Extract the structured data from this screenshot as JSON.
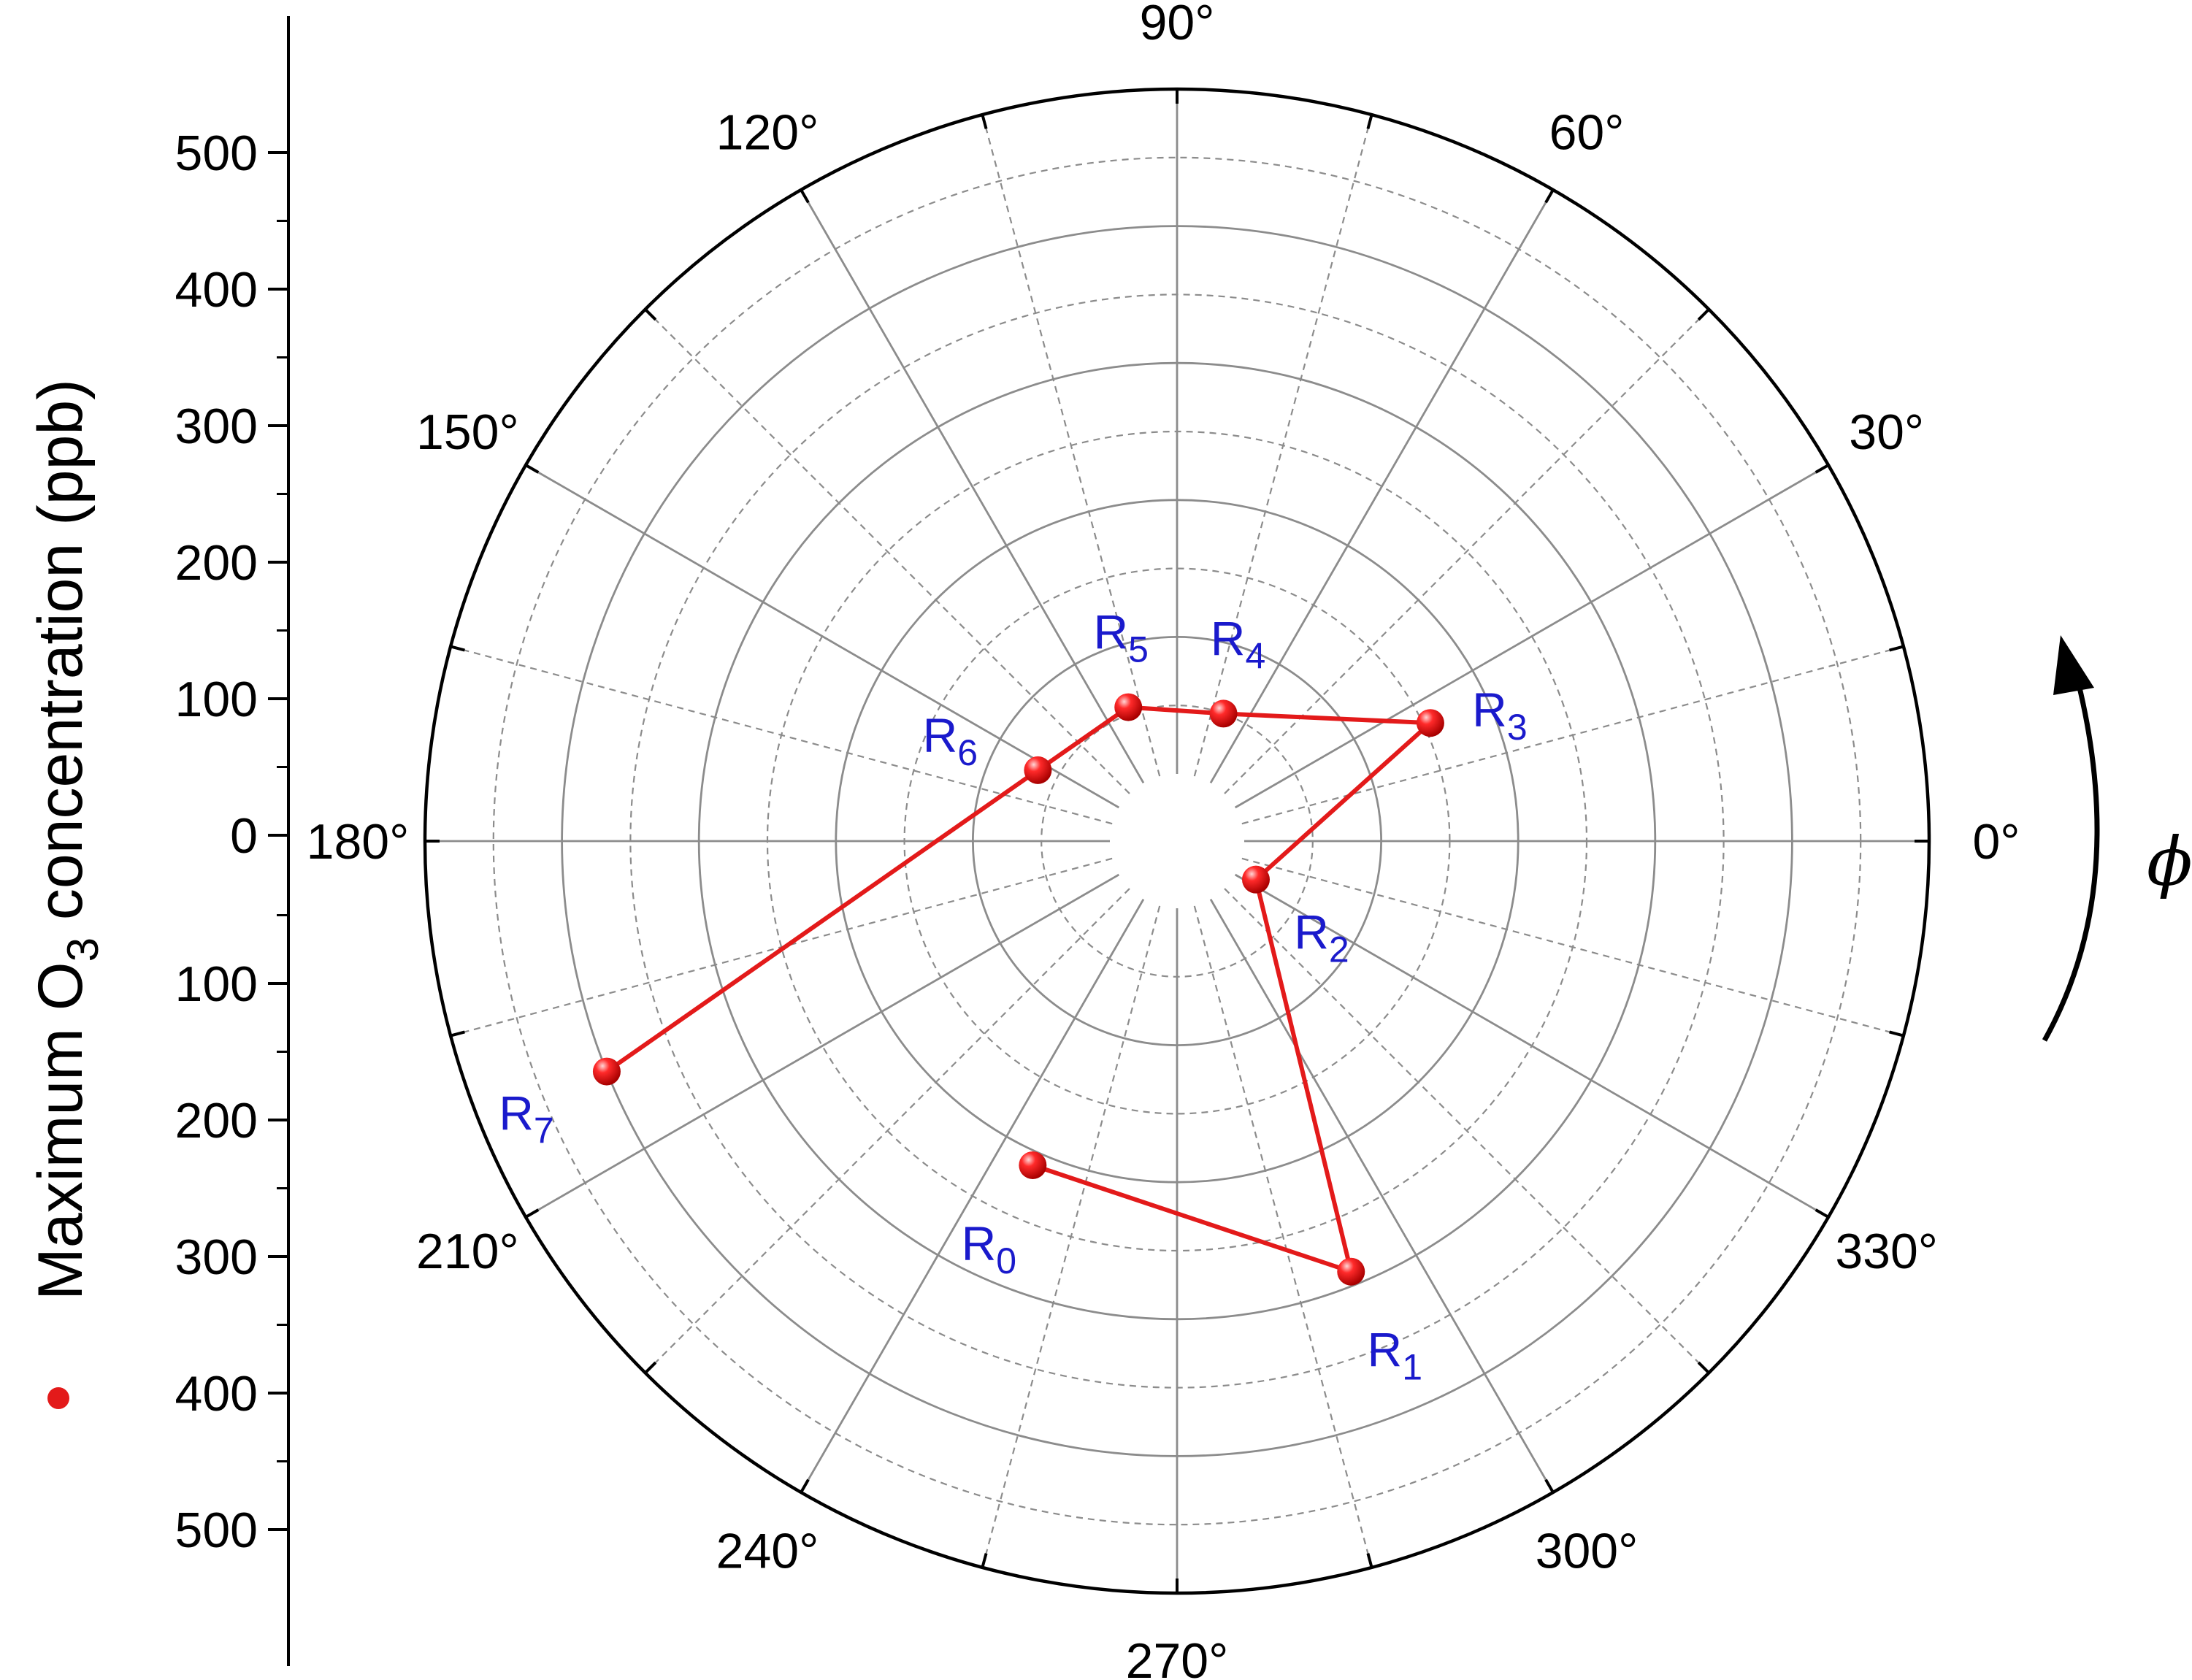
{
  "chart_data": {
    "type": "polar-scatter-line",
    "radial_axis": {
      "label_prefix": "Maximum O",
      "label_subscript": "3",
      "label_suffix": " concentration (ppb)",
      "range": [
        0,
        500
      ],
      "inner_offset": 50,
      "ticks_upper": [
        "500",
        "400",
        "300",
        "200",
        "100",
        "0"
      ],
      "ticks_lower": [
        "100",
        "200",
        "300",
        "400",
        "500"
      ],
      "grid_major": [
        100,
        200,
        300,
        400,
        500
      ],
      "grid_minor": [
        50,
        150,
        250,
        350,
        450
      ]
    },
    "angular_axis": {
      "symbol": "ϕ",
      "direction": "counterclockwise",
      "ticks": [
        {
          "deg": 0,
          "label": "0°"
        },
        {
          "deg": 30,
          "label": "30°"
        },
        {
          "deg": 60,
          "label": "60°"
        },
        {
          "deg": 90,
          "label": "90°"
        },
        {
          "deg": 120,
          "label": "120°"
        },
        {
          "deg": 150,
          "label": "150°"
        },
        {
          "deg": 180,
          "label": "180°"
        },
        {
          "deg": 210,
          "label": "210°"
        },
        {
          "deg": 240,
          "label": "240°"
        },
        {
          "deg": 270,
          "label": "270°"
        },
        {
          "deg": 300,
          "label": "300°"
        },
        {
          "deg": 330,
          "label": "330°"
        }
      ],
      "grid_major_step": 30,
      "grid_minor_step": 15
    },
    "series": [
      {
        "color": "#e31a1a",
        "points": [
          {
            "label": "R",
            "sub": "0",
            "theta": 246,
            "r": 210
          },
          {
            "label": "R",
            "sub": "1",
            "theta": 292,
            "r": 290
          },
          {
            "label": "R",
            "sub": "2",
            "theta": 334,
            "r": 15
          },
          {
            "label": "R",
            "sub": "3",
            "theta": 25,
            "r": 155
          },
          {
            "label": "R",
            "sub": "4",
            "theta": 70,
            "r": 50
          },
          {
            "label": "R",
            "sub": "5",
            "theta": 110,
            "r": 55
          },
          {
            "label": "R",
            "sub": "6",
            "theta": 153,
            "r": 65
          },
          {
            "label": "R",
            "sub": "7",
            "theta": 202,
            "r": 400
          }
        ],
        "closed": false
      }
    ]
  }
}
